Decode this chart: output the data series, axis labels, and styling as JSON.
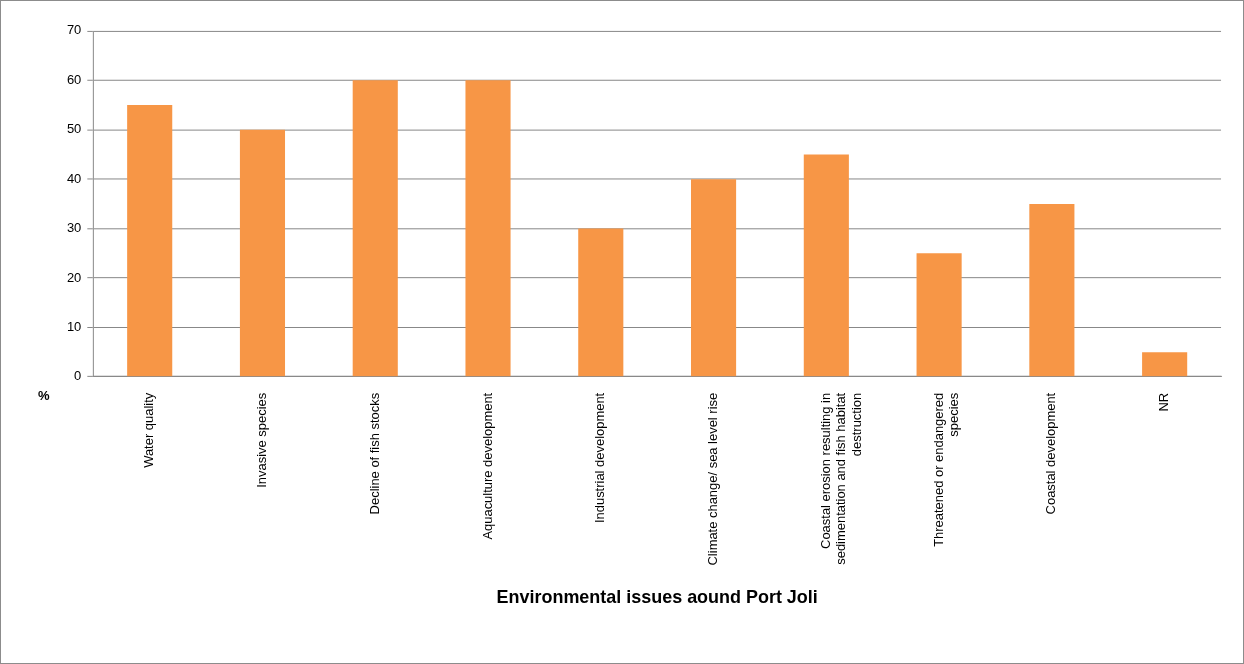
{
  "chart_data": {
    "type": "bar",
    "xlabel": "Environmental issues aound Port Joli",
    "ylabel": "%",
    "categories": [
      "Water quality",
      "Invasive species",
      "Decline of fish stocks",
      "Aquaculture development",
      "Industrial development",
      "Climate change/ sea level rise",
      "Coastal erosion resulting in sedimentation and fish habitat destruction",
      "Threatened or endangered species",
      "Coastal development",
      "NR"
    ],
    "values": [
      55,
      50,
      60,
      60,
      30,
      40,
      45,
      25,
      35,
      5
    ],
    "color": "#f79646",
    "ylim": [
      0,
      70
    ],
    "yticks": [
      0,
      10,
      20,
      30,
      40,
      50,
      60,
      70
    ],
    "grid": "y",
    "legend": false
  }
}
